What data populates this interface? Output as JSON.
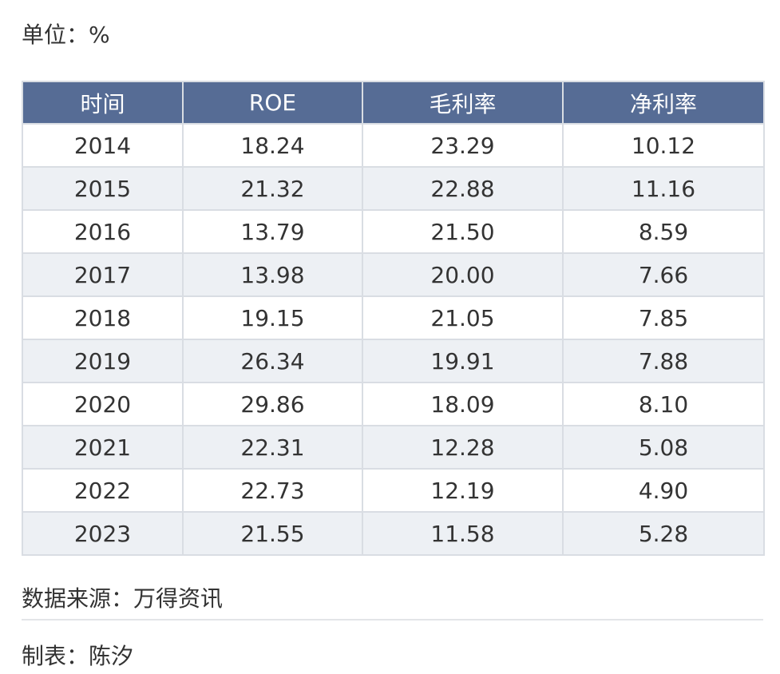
{
  "unit_label": "单位：%",
  "table": {
    "headers": [
      "时间",
      "ROE",
      "毛利率",
      "净利率"
    ],
    "rows": [
      [
        "2014",
        "18.24",
        "23.29",
        "10.12"
      ],
      [
        "2015",
        "21.32",
        "22.88",
        "11.16"
      ],
      [
        "2016",
        "13.79",
        "21.50",
        "8.59"
      ],
      [
        "2017",
        "13.98",
        "20.00",
        "7.66"
      ],
      [
        "2018",
        "19.15",
        "21.05",
        "7.85"
      ],
      [
        "2019",
        "26.34",
        "19.91",
        "7.88"
      ],
      [
        "2020",
        "29.86",
        "18.09",
        "8.10"
      ],
      [
        "2021",
        "22.31",
        "12.28",
        "5.08"
      ],
      [
        "2022",
        "22.73",
        "12.19",
        "4.90"
      ],
      [
        "2023",
        "21.55",
        "11.58",
        "5.28"
      ]
    ]
  },
  "source_label": "数据来源：万得资讯",
  "maker_label": "制表：陈汐",
  "colors": {
    "header_bg": "#566c95",
    "header_text": "#ffffff",
    "stripe_bg": "#edf0f4",
    "border": "#d9dde3"
  }
}
